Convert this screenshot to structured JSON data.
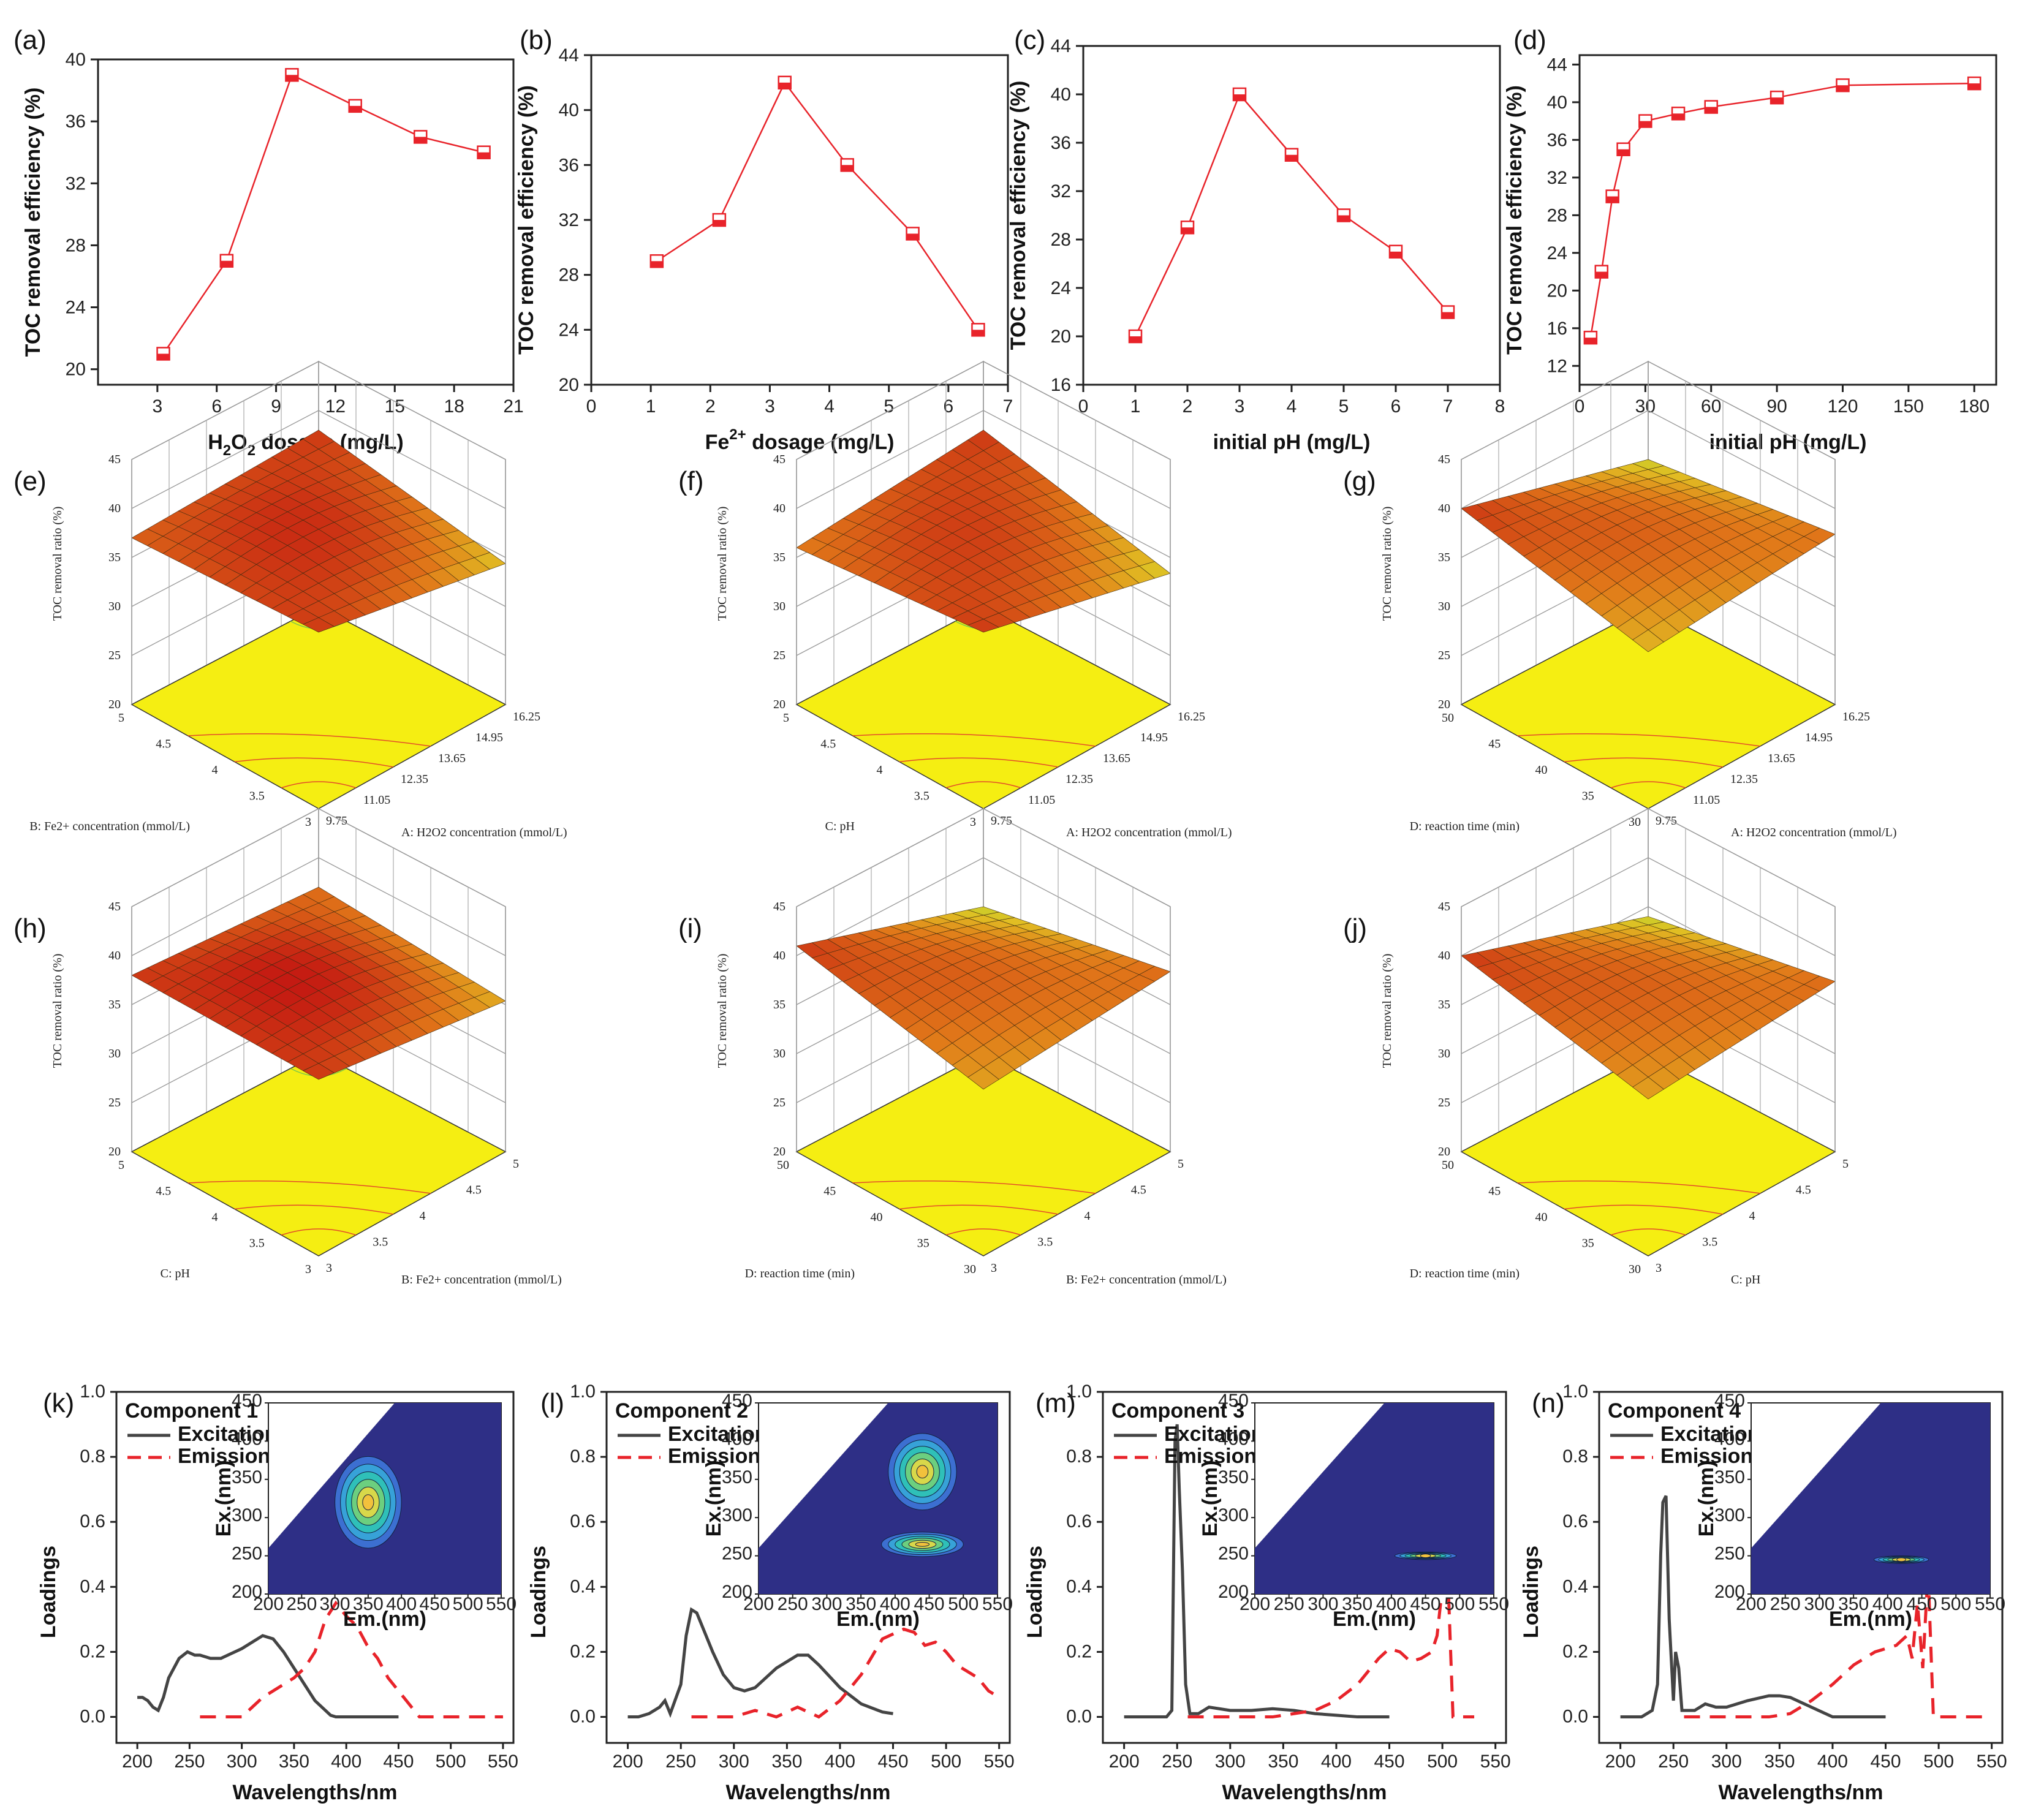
{
  "chart_data": [
    {
      "id": "a",
      "type": "line",
      "panel_label": "(a)",
      "xlabel": "H",
      "xlabel_sub": "2",
      "xlabel_mid": "O",
      "xlabel_sub2": "2",
      "xlabel_tail": " dosage (mg/L)",
      "ylabel": "TOC removal efficiency (%)",
      "xlim": [
        0,
        21
      ],
      "ylim": [
        19,
        40
      ],
      "xticks": [
        3,
        6,
        9,
        12,
        15,
        18,
        21
      ],
      "yticks": [
        20,
        24,
        28,
        32,
        36,
        40
      ],
      "x": [
        3.3,
        6.5,
        9.8,
        13.0,
        16.3,
        19.5
      ],
      "y": [
        21,
        27,
        39,
        37,
        35,
        34
      ],
      "color": "#e8232a"
    },
    {
      "id": "b",
      "type": "line",
      "panel_label": "(b)",
      "xlabel": "Fe",
      "xlabel_sup": "2+",
      "xlabel_tail": " dosage (mg/L)",
      "ylabel": "TOC removal efficiency (%)",
      "xlim": [
        0,
        7
      ],
      "ylim": [
        20,
        44
      ],
      "xticks": [
        0,
        1,
        2,
        3,
        4,
        5,
        6,
        7
      ],
      "yticks": [
        20,
        24,
        28,
        32,
        36,
        40,
        44
      ],
      "x": [
        1.1,
        2.15,
        3.25,
        4.3,
        5.4,
        6.5
      ],
      "y": [
        29,
        32,
        42,
        36,
        31,
        24
      ],
      "color": "#e8232a"
    },
    {
      "id": "c",
      "type": "line",
      "panel_label": "(c)",
      "xlabel": "initial pH (mg/L)",
      "ylabel": "TOC removal efficiency (%)",
      "xlim": [
        0,
        8
      ],
      "ylim": [
        16,
        44
      ],
      "xticks": [
        0,
        1,
        2,
        3,
        4,
        5,
        6,
        7,
        8
      ],
      "yticks": [
        16,
        20,
        24,
        28,
        32,
        36,
        40,
        44
      ],
      "x": [
        1,
        2,
        3,
        4,
        5,
        6,
        7
      ],
      "y": [
        20,
        29,
        40,
        35,
        30,
        27,
        22
      ],
      "color": "#e8232a"
    },
    {
      "id": "d",
      "type": "line",
      "panel_label": "(d)",
      "xlabel": "initial pH (mg/L)",
      "ylabel": "TOC removal efficiency (%)",
      "xlim": [
        0,
        190
      ],
      "ylim": [
        10,
        45
      ],
      "xticks": [
        0,
        30,
        60,
        90,
        120,
        150,
        180
      ],
      "yticks": [
        12,
        16,
        20,
        24,
        28,
        32,
        36,
        40,
        44
      ],
      "x": [
        5,
        10,
        15,
        20,
        30,
        45,
        60,
        90,
        120,
        180
      ],
      "y": [
        15,
        22,
        30,
        35,
        38,
        38.8,
        39.5,
        40.5,
        41.8,
        42
      ],
      "color": "#e8232a"
    },
    {
      "id": "e",
      "type": "surface",
      "panel_label": "(e)",
      "zlabel": "TOC removal ratio (%)",
      "zticks": [
        "20",
        "25",
        "30",
        "35",
        "40",
        "45"
      ],
      "xlabel": "A: H2O2 concentration (mmol/L)",
      "xticks": [
        "9.75",
        "11.05",
        "12.35",
        "13.65",
        "14.95",
        "16.25"
      ],
      "ylabel": "B: Fe2+ concentration (mmol/L)",
      "yticks": [
        "3",
        "3.5",
        "4",
        "4.5",
        "5"
      ],
      "z_corners": [
        37,
        38,
        35,
        38
      ]
    },
    {
      "id": "f",
      "type": "surface",
      "panel_label": "(f)",
      "zlabel": "TOC removal ratio (%)",
      "zticks": [
        "20",
        "25",
        "30",
        "35",
        "40",
        "45"
      ],
      "xlabel": "A: H2O2 concentration (mmol/L)",
      "xticks": [
        "9.75",
        "11.05",
        "12.35",
        "13.65",
        "14.95",
        "16.25"
      ],
      "ylabel": "C: pH",
      "yticks": [
        "3",
        "3.5",
        "4",
        "4.5",
        "5"
      ],
      "z_corners": [
        36,
        38,
        34,
        38
      ]
    },
    {
      "id": "g",
      "type": "surface",
      "panel_label": "(g)",
      "zlabel": "TOC removal ratio (%)",
      "zticks": [
        "20",
        "25",
        "30",
        "35",
        "40",
        "45"
      ],
      "xlabel": "A: H2O2 concentration (mmol/L)",
      "xticks": [
        "9.75",
        "11.05",
        "12.35",
        "13.65",
        "14.95",
        "16.25"
      ],
      "ylabel": "D: reaction time (min)",
      "yticks": [
        "30",
        "35",
        "40",
        "45",
        "50"
      ],
      "z_corners": [
        40,
        36,
        38,
        35
      ]
    },
    {
      "id": "h",
      "type": "surface",
      "panel_label": "(h)",
      "zlabel": "TOC removal ratio (%)",
      "zticks": [
        "20",
        "25",
        "30",
        "35",
        "40",
        "45"
      ],
      "xlabel": "B: Fe2+ concentration (mmol/L)",
      "xticks": [
        "3",
        "3.5",
        "4",
        "4.5",
        "5"
      ],
      "ylabel": "C: pH",
      "yticks": [
        "3",
        "3.5",
        "4",
        "4.5",
        "5"
      ],
      "z_corners": [
        38,
        38,
        36,
        37
      ]
    },
    {
      "id": "i",
      "type": "surface",
      "panel_label": "(i)",
      "zlabel": "TOC removal ratio (%)",
      "zticks": [
        "20",
        "25",
        "30",
        "35",
        "40",
        "45"
      ],
      "xlabel": "B: Fe2+ concentration (mmol/L)",
      "xticks": [
        "3",
        "3.5",
        "4",
        "4.5",
        "5"
      ],
      "ylabel": "D: reaction time (min)",
      "yticks": [
        "30",
        "35",
        "40",
        "45",
        "50"
      ],
      "z_corners": [
        41,
        37,
        39,
        35
      ]
    },
    {
      "id": "j",
      "type": "surface",
      "panel_label": "(j)",
      "zlabel": "TOC removal ratio (%)",
      "zticks": [
        "20",
        "25",
        "30",
        "35",
        "40",
        "45"
      ],
      "xlabel": "C: pH",
      "xticks": [
        "3",
        "3.5",
        "4",
        "4.5",
        "5"
      ],
      "ylabel": "D: reaction time (min)",
      "yticks": [
        "30",
        "35",
        "40",
        "45",
        "50"
      ],
      "z_corners": [
        40,
        36,
        38,
        34
      ]
    },
    {
      "id": "k",
      "type": "line",
      "panel_label": "(k)",
      "legend_title": "Component 1",
      "xlabel": "Wavelengths/nm",
      "ylabel": "Loadings",
      "xlim": [
        180,
        560
      ],
      "ylim": [
        -0.08,
        1.0
      ],
      "xticks": [
        200,
        250,
        300,
        350,
        400,
        450,
        500,
        550
      ],
      "yticks": [
        0.0,
        0.2,
        0.4,
        0.6,
        0.8,
        1.0
      ],
      "series": [
        {
          "name": "Excitation",
          "color": "#444444",
          "dash": false,
          "x": [
            200,
            205,
            210,
            215,
            220,
            225,
            230,
            240,
            248,
            255,
            260,
            270,
            280,
            300,
            320,
            330,
            340,
            350,
            360,
            370,
            380,
            385,
            390,
            400,
            420,
            450
          ],
          "y": [
            0.06,
            0.06,
            0.05,
            0.03,
            0.02,
            0.06,
            0.12,
            0.18,
            0.2,
            0.19,
            0.19,
            0.18,
            0.18,
            0.21,
            0.25,
            0.24,
            0.2,
            0.15,
            0.1,
            0.05,
            0.02,
            0.005,
            0.0,
            0.0,
            0.0,
            0.0
          ]
        },
        {
          "name": "Emission",
          "color": "#e8232a",
          "dash": true,
          "x": [
            260,
            270,
            280,
            290,
            300,
            310,
            320,
            330,
            340,
            350,
            360,
            370,
            380,
            390,
            400,
            410,
            420,
            430,
            440,
            450,
            455,
            460,
            470,
            480,
            490,
            500,
            510,
            520,
            530,
            540,
            550
          ],
          "y": [
            0.0,
            0.0,
            0.0,
            0.0,
            0.0,
            0.03,
            0.06,
            0.08,
            0.1,
            0.12,
            0.15,
            0.2,
            0.3,
            0.35,
            0.31,
            0.28,
            0.22,
            0.18,
            0.12,
            0.08,
            0.06,
            0.04,
            0.0,
            0.0,
            0.0,
            0.0,
            0.0,
            0.0,
            0.0,
            0.0,
            0.0
          ]
        }
      ],
      "inset": {
        "xlabel": "Em.(nm)",
        "ylabel": "Ex.(nm)",
        "xticks": [
          "200",
          "250",
          "300",
          "350",
          "400",
          "450",
          "500",
          "550"
        ],
        "yticks": [
          "200",
          "250",
          "300",
          "350",
          "400",
          "450"
        ],
        "peaks": [
          {
            "em": 350,
            "ex": 320,
            "sx": 50,
            "sy": 60
          }
        ]
      }
    },
    {
      "id": "l",
      "type": "line",
      "panel_label": "(l)",
      "legend_title": "Component 2",
      "xlabel": "Wavelengths/nm",
      "ylabel": "Loadings",
      "xlim": [
        180,
        560
      ],
      "ylim": [
        -0.08,
        1.0
      ],
      "xticks": [
        200,
        250,
        300,
        350,
        400,
        450,
        500,
        550
      ],
      "yticks": [
        0.0,
        0.2,
        0.4,
        0.6,
        0.8,
        1.0
      ],
      "series": [
        {
          "name": "Excitation",
          "color": "#444444",
          "dash": false,
          "x": [
            200,
            210,
            220,
            230,
            235,
            240,
            250,
            255,
            260,
            265,
            270,
            280,
            290,
            300,
            310,
            320,
            340,
            360,
            370,
            380,
            400,
            420,
            440,
            450
          ],
          "y": [
            0.0,
            0.0,
            0.01,
            0.03,
            0.05,
            0.01,
            0.1,
            0.25,
            0.33,
            0.32,
            0.28,
            0.2,
            0.13,
            0.09,
            0.08,
            0.09,
            0.15,
            0.19,
            0.19,
            0.16,
            0.09,
            0.04,
            0.015,
            0.01
          ]
        },
        {
          "name": "Emission",
          "color": "#e8232a",
          "dash": true,
          "x": [
            260,
            280,
            300,
            320,
            340,
            360,
            380,
            400,
            420,
            440,
            460,
            470,
            480,
            490,
            500,
            510,
            520,
            530,
            540,
            550
          ],
          "y": [
            0.0,
            0.0,
            0.0,
            0.02,
            0.0,
            0.03,
            0.0,
            0.05,
            0.13,
            0.24,
            0.27,
            0.26,
            0.22,
            0.23,
            0.2,
            0.16,
            0.14,
            0.12,
            0.08,
            0.06
          ]
        }
      ],
      "inset": {
        "xlabel": "Em.(nm)",
        "ylabel": "Ex.(nm)",
        "xticks": [
          "200",
          "250",
          "300",
          "350",
          "400",
          "450",
          "500",
          "550"
        ],
        "yticks": [
          "200",
          "250",
          "300",
          "350",
          "400",
          "450"
        ],
        "peaks": [
          {
            "em": 440,
            "ex": 360,
            "sx": 50,
            "sy": 50
          },
          {
            "em": 440,
            "ex": 265,
            "sx": 60,
            "sy": 16
          }
        ]
      }
    },
    {
      "id": "m",
      "type": "line",
      "panel_label": "(m)",
      "legend_title": "Component 3",
      "xlabel": "Wavelengths/nm",
      "ylabel": "Loadings",
      "xlim": [
        180,
        560
      ],
      "ylim": [
        -0.08,
        1.0
      ],
      "xticks": [
        200,
        250,
        300,
        350,
        400,
        450,
        500,
        550
      ],
      "yticks": [
        0.0,
        0.2,
        0.4,
        0.6,
        0.8,
        1.0
      ],
      "series": [
        {
          "name": "Excitation",
          "color": "#444444",
          "dash": false,
          "x": [
            200,
            240,
            245,
            248,
            250,
            252,
            255,
            258,
            262,
            270,
            280,
            300,
            320,
            340,
            360,
            380,
            400,
            420,
            450
          ],
          "y": [
            0.0,
            0.0,
            0.02,
            0.85,
            0.9,
            0.7,
            0.45,
            0.1,
            0.01,
            0.01,
            0.03,
            0.02,
            0.02,
            0.025,
            0.02,
            0.01,
            0.005,
            0.0,
            0.0
          ]
        },
        {
          "name": "Emission",
          "color": "#e8232a",
          "dash": true,
          "x": [
            260,
            300,
            340,
            360,
            380,
            400,
            420,
            440,
            450,
            460,
            470,
            480,
            490,
            495,
            500,
            505,
            510,
            520,
            530
          ],
          "y": [
            0.0,
            0.0,
            0.0,
            0.01,
            0.02,
            0.05,
            0.1,
            0.18,
            0.21,
            0.2,
            0.17,
            0.18,
            0.2,
            0.25,
            0.4,
            0.45,
            0.0,
            0.0,
            0.0
          ]
        }
      ],
      "inset": {
        "xlabel": "Em.(nm)",
        "ylabel": "Ex.(nm)",
        "xticks": [
          "200",
          "250",
          "300",
          "350",
          "400",
          "450",
          "500",
          "550"
        ],
        "yticks": [
          "200",
          "250",
          "300",
          "350",
          "400",
          "450"
        ],
        "peaks": [
          {
            "em": 450,
            "ex": 250,
            "sx": 45,
            "sy": 5
          }
        ]
      }
    },
    {
      "id": "n",
      "type": "line",
      "panel_label": "(n)",
      "legend_title": "Component 4",
      "xlabel": "Wavelengths/nm",
      "ylabel": "Loadings",
      "xlim": [
        180,
        560
      ],
      "ylim": [
        -0.08,
        1.0
      ],
      "xticks": [
        200,
        250,
        300,
        350,
        400,
        450,
        500,
        550
      ],
      "yticks": [
        0.0,
        0.2,
        0.4,
        0.6,
        0.8,
        1.0
      ],
      "series": [
        {
          "name": "Excitation",
          "color": "#444444",
          "dash": false,
          "x": [
            200,
            220,
            230,
            235,
            238,
            240,
            243,
            246,
            250,
            252,
            255,
            258,
            262,
            270,
            280,
            290,
            300,
            320,
            340,
            350,
            360,
            380,
            400,
            420,
            450
          ],
          "y": [
            0.0,
            0.0,
            0.02,
            0.1,
            0.5,
            0.66,
            0.68,
            0.3,
            0.05,
            0.2,
            0.15,
            0.02,
            0.02,
            0.02,
            0.04,
            0.03,
            0.03,
            0.05,
            0.065,
            0.065,
            0.06,
            0.03,
            0.0,
            0.0,
            0.0
          ]
        },
        {
          "name": "Emission",
          "color": "#e8232a",
          "dash": true,
          "x": [
            260,
            280,
            300,
            320,
            340,
            360,
            380,
            400,
            420,
            440,
            460,
            470,
            475,
            480,
            485,
            490,
            495,
            500,
            520,
            550
          ],
          "y": [
            0.0,
            0.0,
            0.0,
            0.0,
            0.0,
            0.01,
            0.05,
            0.1,
            0.16,
            0.2,
            0.22,
            0.25,
            0.18,
            0.35,
            0.15,
            0.45,
            0.0,
            0.0,
            0.0,
            0.0
          ]
        }
      ],
      "inset": {
        "xlabel": "Em.(nm)",
        "ylabel": "Ex.(nm)",
        "xticks": [
          "200",
          "250",
          "300",
          "350",
          "400",
          "450",
          "500",
          "550"
        ],
        "yticks": [
          "200",
          "250",
          "300",
          "350",
          "400",
          "450"
        ],
        "peaks": [
          {
            "em": 420,
            "ex": 245,
            "sx": 40,
            "sy": 5
          }
        ]
      }
    }
  ]
}
